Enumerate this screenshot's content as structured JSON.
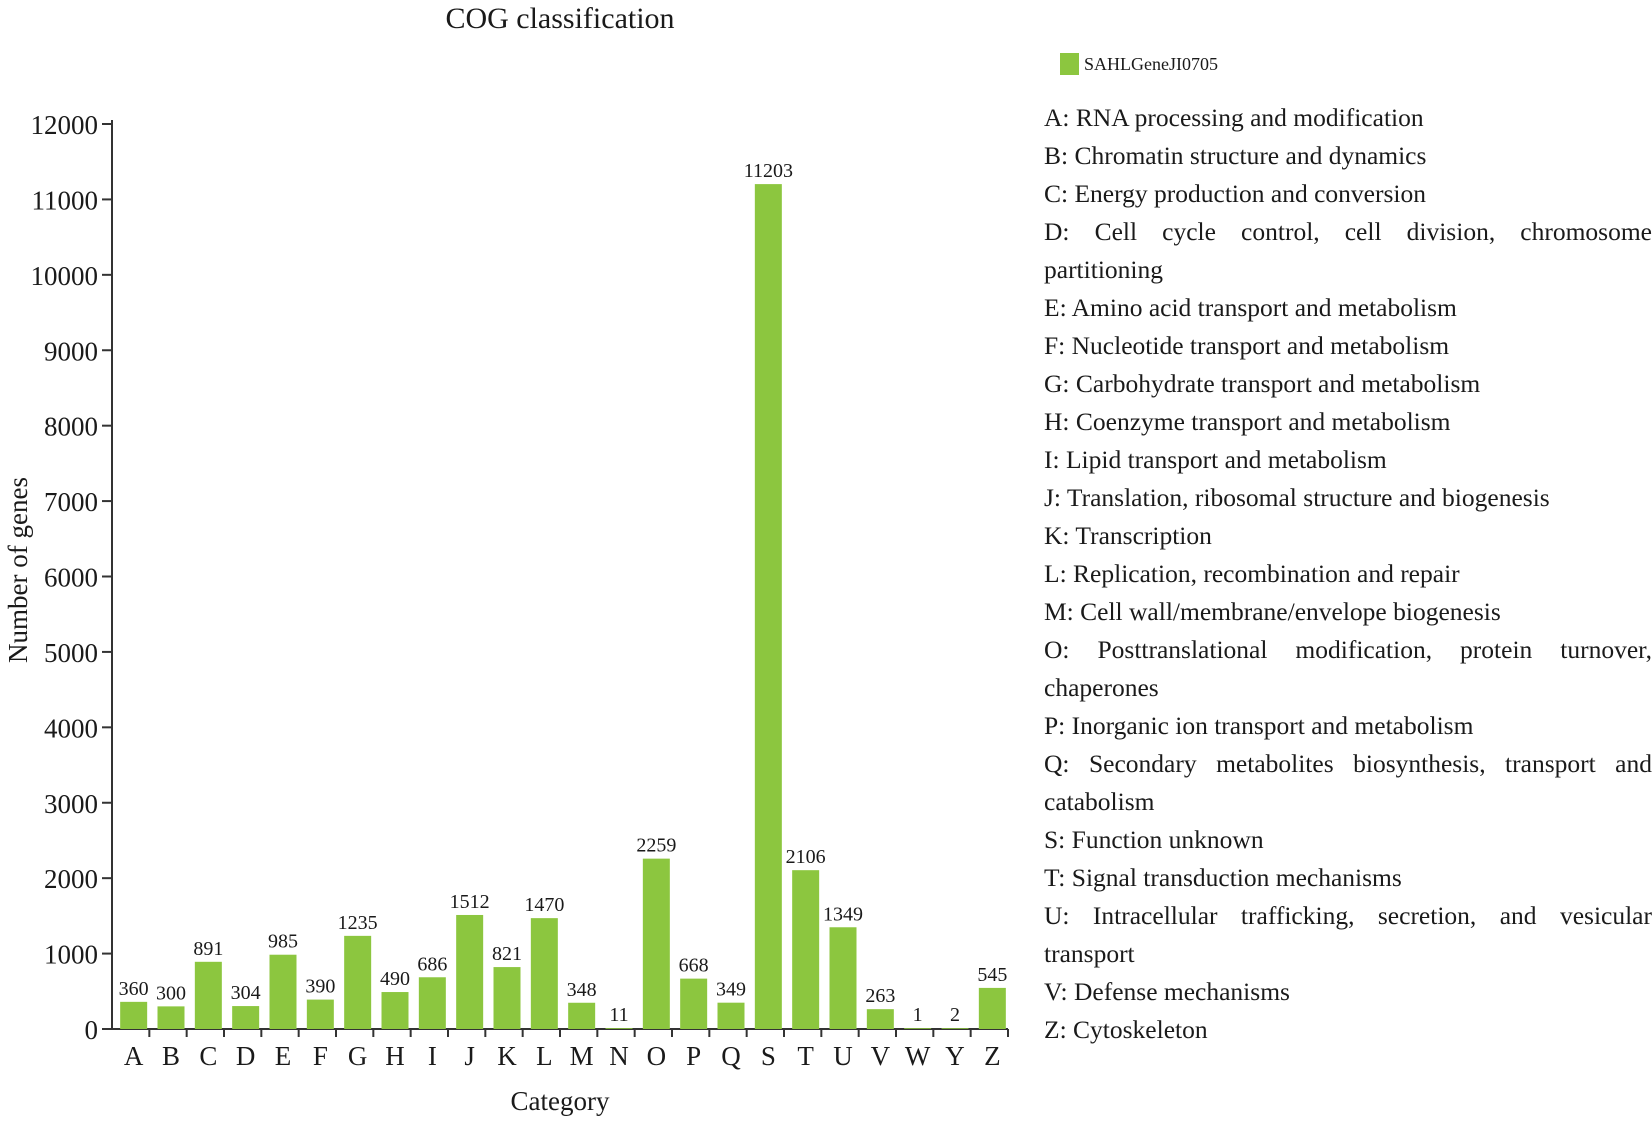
{
  "colors": {
    "bar": "#8cc63f",
    "axis": "#333333",
    "text": "#1a1a1a"
  },
  "chart_data": {
    "type": "bar",
    "title": "COG classification",
    "xlabel": "Category",
    "ylabel": "Number of genes",
    "ylim": [
      0,
      12000
    ],
    "yticks": [
      0,
      1000,
      2000,
      3000,
      4000,
      5000,
      6000,
      7000,
      8000,
      9000,
      10000,
      11000,
      12000
    ],
    "grid": false,
    "legend_position": "top-right",
    "categories": [
      "A",
      "B",
      "C",
      "D",
      "E",
      "F",
      "G",
      "H",
      "I",
      "J",
      "K",
      "L",
      "M",
      "N",
      "O",
      "P",
      "Q",
      "S",
      "T",
      "U",
      "V",
      "W",
      "Y",
      "Z"
    ],
    "series": [
      {
        "name": "SAHLGeneJI0705",
        "values": [
          360,
          300,
          891,
          304,
          985,
          390,
          1235,
          490,
          686,
          1512,
          821,
          1470,
          348,
          11,
          2259,
          668,
          349,
          11203,
          2106,
          1349,
          263,
          1,
          2,
          545
        ]
      }
    ]
  },
  "legend": {
    "label": "SAHLGeneJI0705"
  },
  "descriptions": [
    "A: RNA processing and modification",
    "B: Chromatin structure and dynamics",
    "C: Energy production and conversion",
    "D: Cell cycle control, cell division, chromosome partitioning",
    "E: Amino acid transport and metabolism",
    "F: Nucleotide transport and metabolism",
    "G: Carbohydrate transport and metabolism",
    "H: Coenzyme transport and metabolism",
    "I: Lipid transport and metabolism",
    "J: Translation, ribosomal structure and biogenesis",
    "K: Transcription",
    "L: Replication, recombination and repair",
    "M: Cell wall/membrane/envelope biogenesis",
    "O: Posttranslational modification, protein turnover, chaperones",
    "P: Inorganic ion transport and metabolism",
    "Q: Secondary metabolites biosynthesis, transport and catabolism",
    "S: Function unknown",
    "T: Signal transduction mechanisms",
    "U: Intracellular trafficking, secretion, and vesicular transport",
    "V: Defense mechanisms",
    "Z: Cytoskeleton"
  ]
}
